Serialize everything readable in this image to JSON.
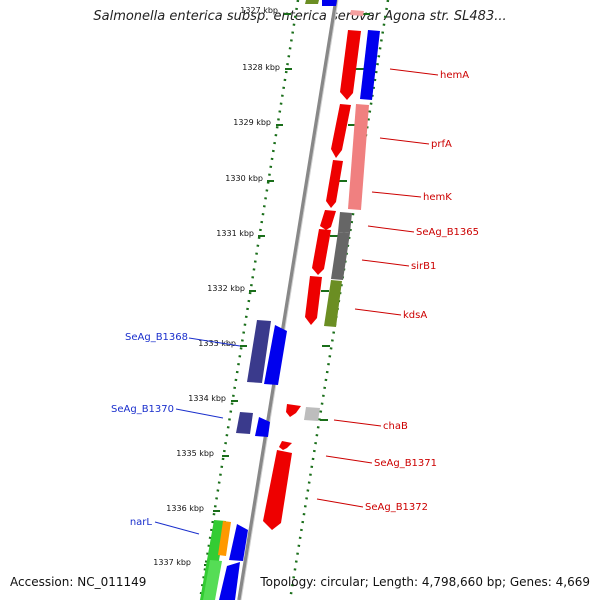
{
  "title": "Salmonella enterica subsp. enterica serovar Agona str. SL483...",
  "footer": {
    "accession": "Accession: NC_011149",
    "topology": "Topology: circular; Length: 4,798,660 bp; Genes: 4,669"
  },
  "ticks": [
    "1327 kbp",
    "1328 kbp",
    "1329 kbp",
    "1330 kbp",
    "1331 kbp",
    "1332 kbp",
    "1333 kbp",
    "1334 kbp",
    "1335 kbp",
    "1336 kbp",
    "1337 kbp"
  ],
  "labels_right": [
    "hemA",
    "prfA",
    "hemK",
    "SeAg_B1365",
    "sirB1",
    "kdsA",
    "chaB",
    "SeAg_B1371",
    "SeAg_B1372"
  ],
  "labels_left": [
    "SeAg_B1368",
    "SeAg_B1370",
    "narL"
  ],
  "colors": {
    "forward_cds": "#ee0000",
    "reverse_cds": "#0000ee",
    "gene_track": "#2222ff",
    "label_right": "#cc0000",
    "label_left": "#1a2fcc",
    "tick": "#1a6e1a",
    "backbone": "#888888"
  }
}
